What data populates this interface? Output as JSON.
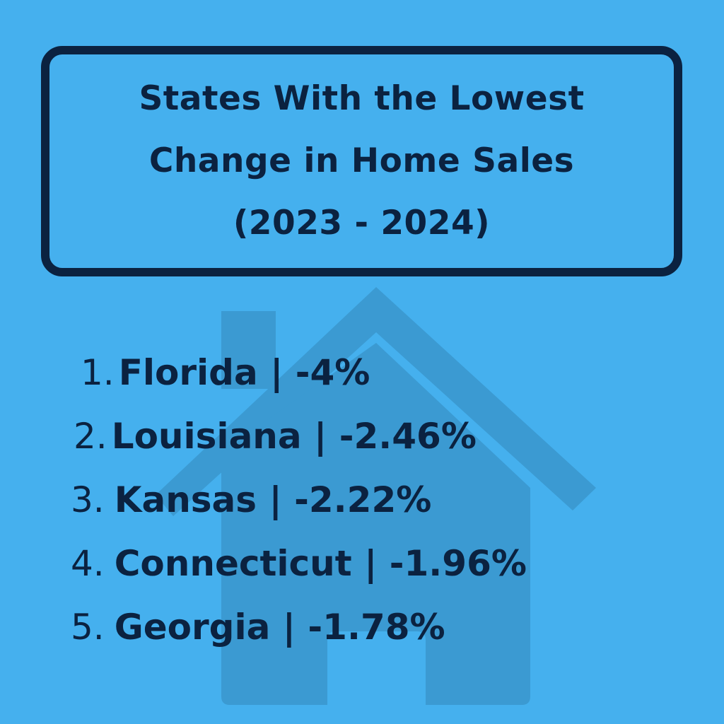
{
  "title": {
    "lines": [
      "States With the Lowest",
      "Change in Home Sales",
      "(2023 - 2024)"
    ]
  },
  "ranking": [
    {
      "rank": "1.",
      "state": "Florida",
      "change": "-4%",
      "text": "Florida | -4%"
    },
    {
      "rank": "2.",
      "state": "Louisiana",
      "change": "-2.46%",
      "text": "Louisiana | -2.46%"
    },
    {
      "rank": "3.",
      "state": "Kansas",
      "change": "-2.22%",
      "text": "Kansas | -2.22%"
    },
    {
      "rank": "4.",
      "state": "Connecticut",
      "change": "-1.96%",
      "text": "Connecticut | -1.96%"
    },
    {
      "rank": "5.",
      "state": "Georgia",
      "change": "-1.78%",
      "text": "Georgia | -1.78%"
    }
  ],
  "colors": {
    "background": "#45b0ee",
    "text": "#0b2240",
    "house": "#3a9ad3"
  },
  "icons": {
    "background": "house-icon"
  }
}
